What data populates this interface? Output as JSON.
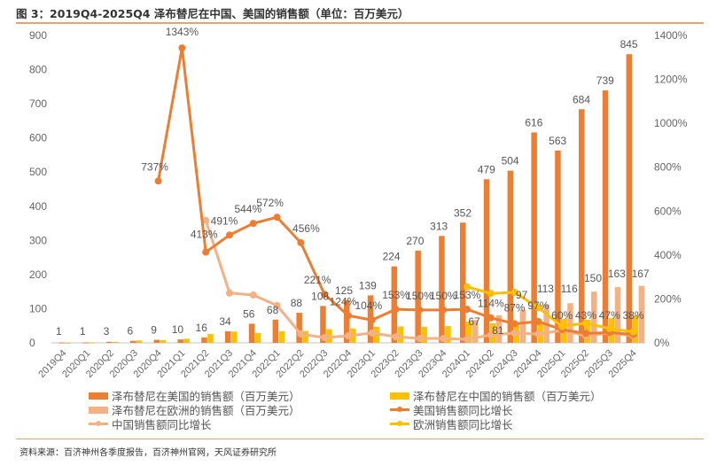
{
  "title": "图 3：2019Q4-2025Q4 泽布替尼在中国、美国的销售额（单位：百万美元）",
  "source": "资料来源：百济神州各季度报告，百济神州官网，天风证券研究所",
  "colors": {
    "us_bar": "#ED7D31",
    "cn_bar": "#FFC000",
    "eu_bar": "#F4B183",
    "us_line": "#ED7D31",
    "cn_line": "#F4B183",
    "eu_line": "#FFC000",
    "rule": "#F0A060"
  },
  "chart_data": {
    "type": "bar+line",
    "title": "图 3：2019Q4-2025Q4 泽布替尼在中国、美国的销售额（单位：百万美元）",
    "categories": [
      "2019Q4",
      "2020Q1",
      "2020Q2",
      "2020Q3",
      "2020Q4",
      "2021Q1",
      "2021Q2",
      "2021Q3",
      "2021Q4",
      "2022Q1",
      "2022Q2",
      "2022Q3",
      "2022Q4",
      "2023Q1",
      "2023Q2",
      "2023Q3",
      "2023Q4",
      "2024Q1",
      "2024Q2",
      "2024Q3",
      "2024Q4",
      "2025Q1",
      "2025Q2",
      "2025Q3",
      "2025Q4"
    ],
    "ylim_left": [
      0,
      900
    ],
    "yticks_left": [
      "0",
      "100",
      "200",
      "300",
      "400",
      "500",
      "600",
      "700",
      "800",
      "900"
    ],
    "ylim_right": [
      0,
      1400
    ],
    "yticks_right": [
      "0%",
      "200%",
      "400%",
      "600%",
      "800%",
      "1000%",
      "1200%",
      "1400%"
    ],
    "legend_position": "bottom",
    "series": [
      {
        "name": "泽布替尼在美国的销售额（百万美元）",
        "kind": "bar",
        "axis": "left",
        "values": [
          1,
          1,
          3,
          6,
          9,
          10,
          16,
          34,
          56,
          68,
          88,
          108,
          125,
          139,
          224,
          270,
          313,
          352,
          479,
          504,
          616,
          563,
          684,
          739,
          845
        ],
        "labels": [
          "1",
          "1",
          "3",
          "6",
          "9",
          "10",
          "16",
          "34",
          "56",
          "68",
          "88",
          "108",
          "125",
          "139",
          "224",
          "270",
          "313",
          "352",
          "479",
          "504",
          "616",
          "563",
          "684",
          "739",
          "845"
        ]
      },
      {
        "name": "泽布替尼在中国的销售额（百万美元）",
        "kind": "bar",
        "axis": "left",
        "values": [
          0,
          1,
          3,
          7,
          8,
          12,
          26,
          33,
          29,
          34,
          35,
          40,
          42,
          47,
          48,
          47,
          49,
          62,
          57,
          58,
          60,
          70,
          68,
          72,
          80
        ]
      },
      {
        "name": "泽布替尼在欧洲的销售额（百万美元）",
        "kind": "bar",
        "axis": "left",
        "values": [
          null,
          null,
          null,
          null,
          null,
          null,
          null,
          null,
          null,
          null,
          null,
          null,
          null,
          null,
          null,
          null,
          null,
          67,
          81,
          97,
          113,
          116,
          150,
          163,
          167
        ],
        "labels": [
          null,
          null,
          null,
          null,
          null,
          null,
          null,
          null,
          null,
          null,
          null,
          null,
          null,
          null,
          null,
          null,
          null,
          "67",
          "81",
          "97",
          "113",
          "116",
          "150",
          "163",
          "167"
        ]
      },
      {
        "name": "美国销售额同比增长",
        "kind": "line",
        "axis": "right",
        "values": [
          null,
          null,
          null,
          null,
          737,
          1343,
          413,
          491,
          544,
          572,
          456,
          221,
          124,
          104,
          153,
          150,
          150,
          153,
          114,
          87,
          97,
          60,
          43,
          47,
          38
        ],
        "labels": [
          null,
          null,
          null,
          null,
          "737%",
          "1343%",
          "413%",
          "491%",
          "544%",
          "572%",
          "456%",
          "221%",
          "124%",
          "104%",
          "153%",
          "150%",
          "150%",
          "153%",
          "114%",
          "87%",
          "97%",
          "60%",
          "43%",
          "47%",
          "38%"
        ]
      },
      {
        "name": "中国销售额同比增长",
        "kind": "line",
        "axis": "right",
        "values": [
          null,
          null,
          null,
          null,
          null,
          null,
          558,
          227,
          218,
          170,
          40,
          24,
          32,
          45,
          28,
          20,
          20,
          16,
          36,
          45,
          40,
          57,
          32,
          45,
          32
        ]
      },
      {
        "name": "欧洲销售额同比增长",
        "kind": "line",
        "axis": "right",
        "values": [
          null,
          null,
          null,
          null,
          null,
          null,
          null,
          null,
          null,
          null,
          null,
          null,
          null,
          null,
          null,
          null,
          null,
          255,
          225,
          230,
          160,
          75,
          90,
          65,
          50
        ]
      }
    ]
  }
}
